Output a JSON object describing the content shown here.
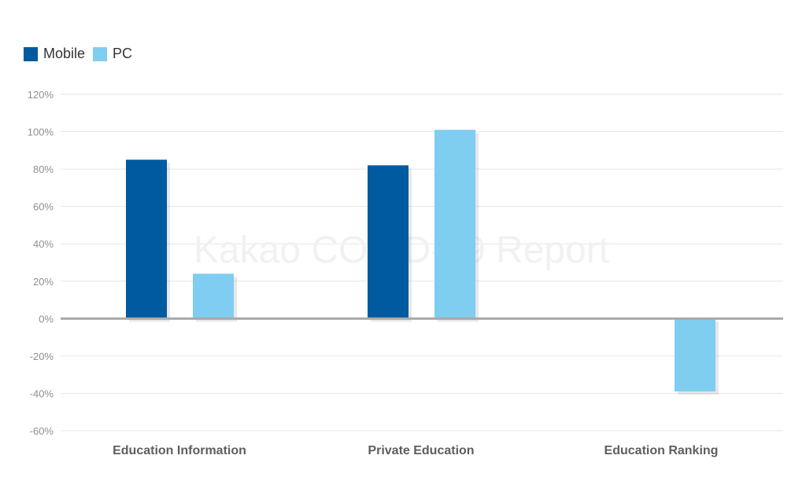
{
  "legend": {
    "items": [
      {
        "label": "Mobile",
        "color": "#005aa0"
      },
      {
        "label": "PC",
        "color": "#7fcdf1"
      }
    ]
  },
  "watermark": "Kakao COVID-19 Report",
  "chart_data": {
    "type": "bar",
    "categories": [
      "Education Information",
      "Private Education",
      "Education Ranking"
    ],
    "series": [
      {
        "name": "Mobile",
        "values": [
          85,
          82,
          0
        ]
      },
      {
        "name": "PC",
        "values": [
          24,
          101,
          -39
        ]
      }
    ],
    "y_ticks": [
      "120%",
      "100%",
      "80%",
      "60%",
      "40%",
      "20%",
      "0%",
      "-20%",
      "-40%",
      "-60%"
    ],
    "ylim": [
      -60,
      120
    ],
    "grid": true,
    "legend_position": "top-left"
  }
}
